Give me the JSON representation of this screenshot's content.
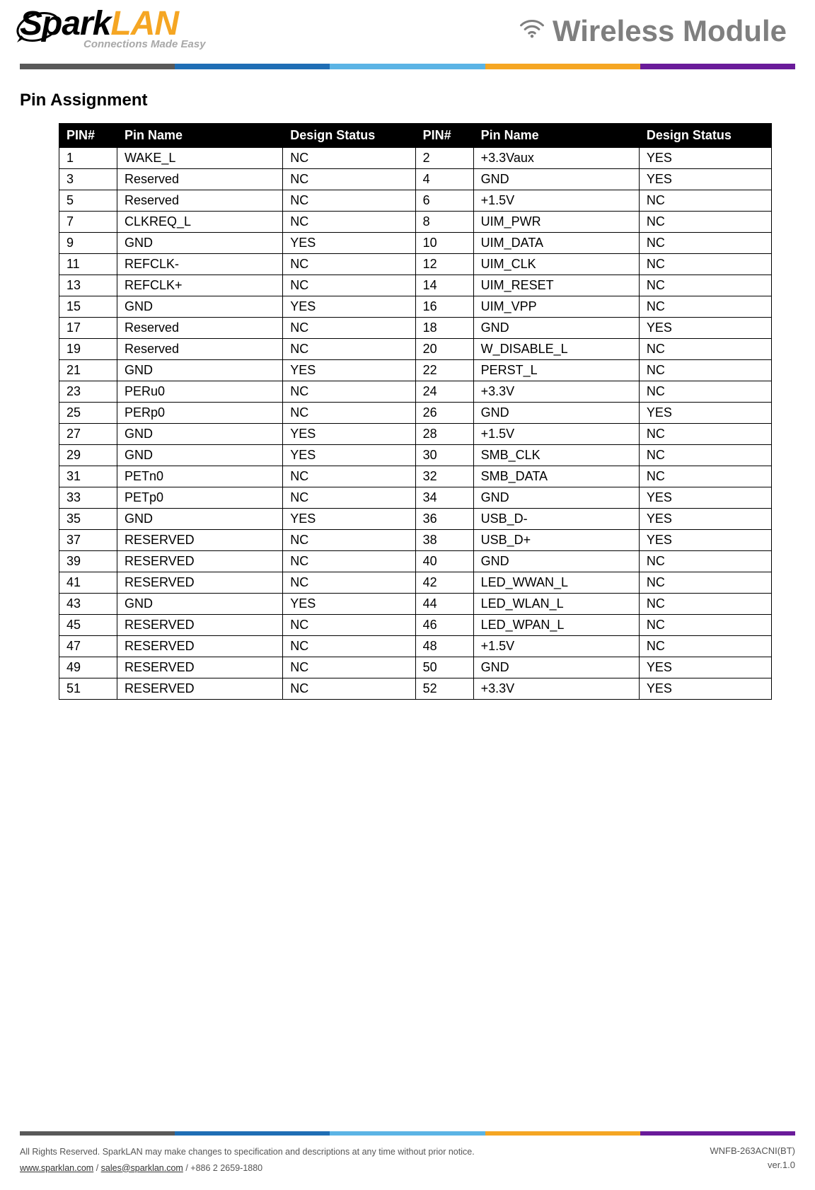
{
  "header": {
    "logo_black": "Spark",
    "logo_orange": "LAN",
    "tagline": "Connections Made Easy",
    "title": "Wireless Module"
  },
  "colorbar": {
    "gray": "#595959",
    "blue": "#1f6eb5",
    "lblue": "#5bb4e5",
    "orange": "#f5a623",
    "purple": "#6a1b9a"
  },
  "section_title": "Pin Assignment",
  "table": {
    "headers": [
      "PIN#",
      "Pin Name",
      "Design Status",
      "PIN#",
      "Pin Name",
      "Design Status"
    ],
    "rows": [
      [
        "1",
        "WAKE_L",
        "NC",
        "2",
        "+3.3Vaux",
        "YES"
      ],
      [
        "3",
        "Reserved",
        "NC",
        "4",
        "GND",
        "YES"
      ],
      [
        "5",
        "Reserved",
        "NC",
        "6",
        "+1.5V",
        "NC"
      ],
      [
        "7",
        "CLKREQ_L",
        "NC",
        "8",
        "UIM_PWR",
        "NC"
      ],
      [
        "9",
        "GND",
        "YES",
        "10",
        "UIM_DATA",
        "NC"
      ],
      [
        "11",
        "REFCLK-",
        "NC",
        "12",
        "UIM_CLK",
        "NC"
      ],
      [
        "13",
        "REFCLK+",
        "NC",
        "14",
        "UIM_RESET",
        "NC"
      ],
      [
        "15",
        "GND",
        "YES",
        "16",
        "UIM_VPP",
        "NC"
      ],
      [
        "17",
        "Reserved",
        "NC",
        "18",
        "GND",
        "YES"
      ],
      [
        "19",
        "Reserved",
        "NC",
        "20",
        "W_DISABLE_L",
        "NC"
      ],
      [
        "21",
        "GND",
        "YES",
        "22",
        "PERST_L",
        "NC"
      ],
      [
        "23",
        "PERu0",
        "NC",
        "24",
        "+3.3V",
        "NC"
      ],
      [
        "25",
        "PERp0",
        "NC",
        "26",
        "GND",
        "YES"
      ],
      [
        "27",
        "GND",
        "YES",
        "28",
        "+1.5V",
        "NC"
      ],
      [
        "29",
        "GND",
        "YES",
        "30",
        "SMB_CLK",
        "NC"
      ],
      [
        "31",
        "PETn0",
        "NC",
        "32",
        "SMB_DATA",
        "NC"
      ],
      [
        "33",
        "PETp0",
        "NC",
        "34",
        "GND",
        "YES"
      ],
      [
        "35",
        "GND",
        "YES",
        "36",
        "USB_D-",
        "YES"
      ],
      [
        "37",
        "RESERVED",
        "NC",
        "38",
        "USB_D+",
        "YES"
      ],
      [
        "39",
        "RESERVED",
        "NC",
        "40",
        "GND",
        "NC"
      ],
      [
        "41",
        "RESERVED",
        "NC",
        "42",
        "LED_WWAN_L",
        "NC"
      ],
      [
        "43",
        "GND",
        "YES",
        "44",
        "LED_WLAN_L",
        "NC"
      ],
      [
        "45",
        "RESERVED",
        "NC",
        "46",
        "LED_WPAN_L",
        "NC"
      ],
      [
        "47",
        "RESERVED",
        "NC",
        "48",
        "+1.5V",
        "NC"
      ],
      [
        "49",
        "RESERVED",
        "NC",
        "50",
        "GND",
        "YES"
      ],
      [
        "51",
        "RESERVED",
        "NC",
        "52",
        "+3.3V",
        "YES"
      ]
    ]
  },
  "footer": {
    "rights": "All Rights Reserved. SparkLAN may make changes to specification and descriptions at any time without prior notice.",
    "link1": "www.sparklan.com",
    "link2": "sales@sparklan.com",
    "phone": "+886 2 2659-1880",
    "model": "WNFB-263ACNI(BT)",
    "version": "ver.1.0"
  }
}
